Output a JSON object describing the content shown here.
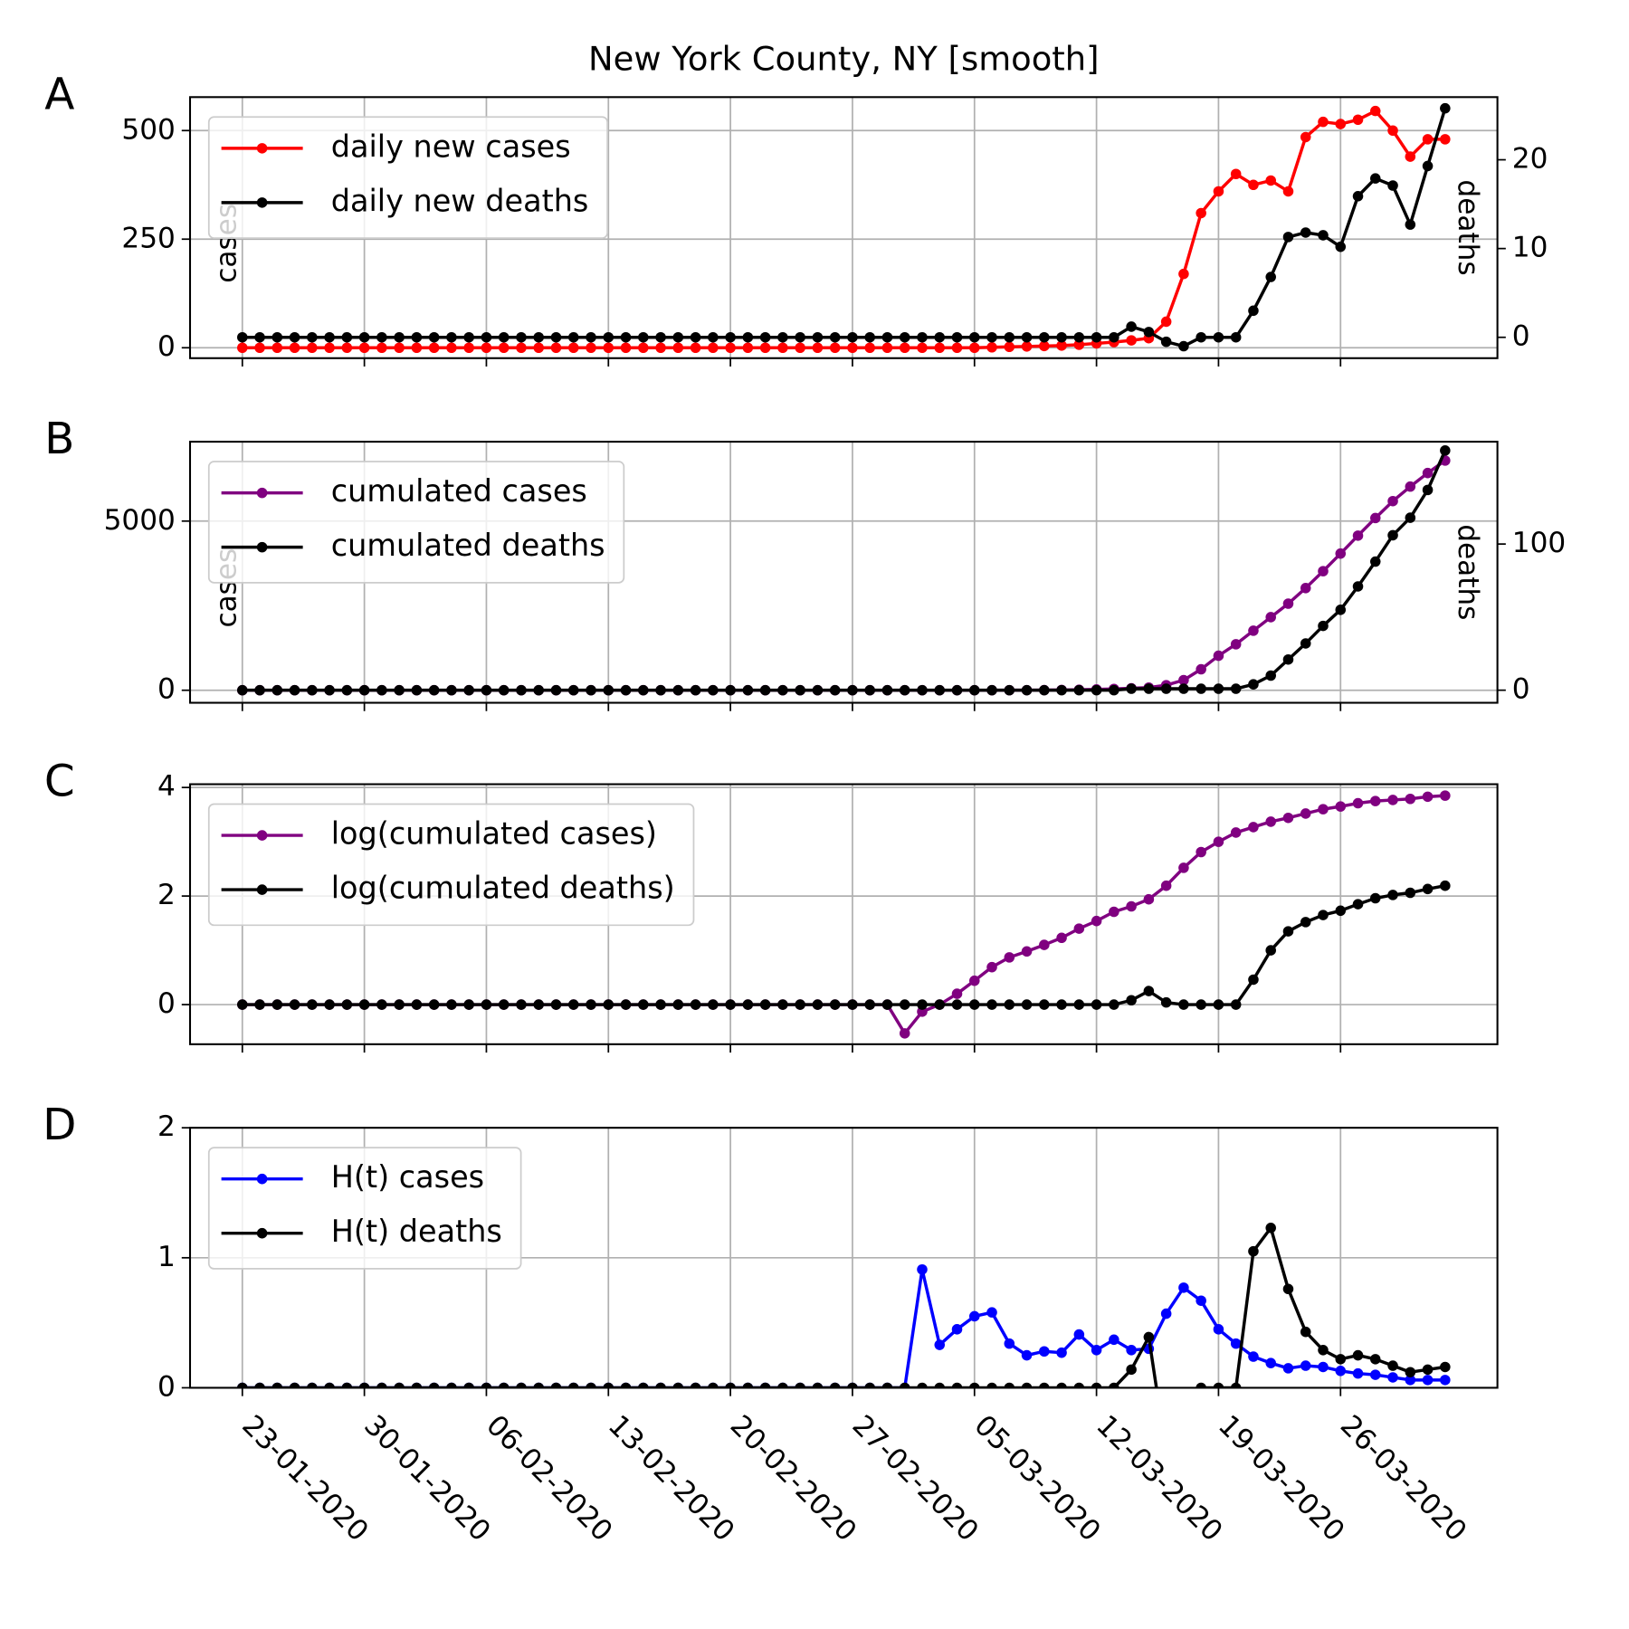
{
  "chart_data": [
    {
      "type": "line",
      "panel_label": "A",
      "title": "New York County, NY [smooth]",
      "ylabel": "cases",
      "y2label": "deaths",
      "grid": true,
      "legend": "upper left",
      "x": [
        "23-01-2020",
        "24-01-2020",
        "25-01-2020",
        "26-01-2020",
        "27-01-2020",
        "28-01-2020",
        "29-01-2020",
        "30-01-2020",
        "31-01-2020",
        "01-02-2020",
        "02-02-2020",
        "03-02-2020",
        "04-02-2020",
        "05-02-2020",
        "06-02-2020",
        "07-02-2020",
        "08-02-2020",
        "09-02-2020",
        "10-02-2020",
        "11-02-2020",
        "12-02-2020",
        "13-02-2020",
        "14-02-2020",
        "15-02-2020",
        "16-02-2020",
        "17-02-2020",
        "18-02-2020",
        "19-02-2020",
        "20-02-2020",
        "21-02-2020",
        "22-02-2020",
        "23-02-2020",
        "24-02-2020",
        "25-02-2020",
        "26-02-2020",
        "27-02-2020",
        "28-02-2020",
        "29-02-2020",
        "01-03-2020",
        "02-03-2020",
        "03-03-2020",
        "04-03-2020",
        "05-03-2020",
        "06-03-2020",
        "07-03-2020",
        "08-03-2020",
        "09-03-2020",
        "10-03-2020",
        "11-03-2020",
        "12-03-2020",
        "13-03-2020",
        "14-03-2020",
        "15-03-2020",
        "16-03-2020",
        "17-03-2020",
        "18-03-2020",
        "19-03-2020",
        "20-03-2020",
        "21-03-2020",
        "22-03-2020",
        "23-03-2020",
        "24-03-2020",
        "25-03-2020",
        "26-03-2020",
        "27-03-2020",
        "28-03-2020",
        "29-03-2020",
        "30-03-2020",
        "31-03-2020",
        "01-04-2020"
      ],
      "xlim": [
        "20-01-2020",
        "04-04-2020"
      ],
      "xticks": [
        "23-01-2020",
        "30-01-2020",
        "06-02-2020",
        "13-02-2020",
        "20-02-2020",
        "27-02-2020",
        "05-03-2020",
        "12-03-2020",
        "19-03-2020",
        "26-03-2020"
      ],
      "ylim": [
        -24,
        577
      ],
      "yticks": [
        0,
        250,
        500
      ],
      "y2lim": [
        -2.35,
        27.06
      ],
      "y2ticks": [
        0,
        10,
        20
      ],
      "series": [
        {
          "name": "daily new cases",
          "color": "#ff0000",
          "values": [
            0,
            0,
            0,
            0,
            0,
            0,
            0,
            0,
            0,
            0,
            0,
            0,
            0,
            0,
            0,
            0,
            0,
            0,
            0,
            0,
            0,
            0,
            0,
            0,
            0,
            0,
            0,
            0,
            0,
            0,
            0,
            0,
            0,
            0,
            0,
            0,
            0,
            0,
            0,
            0,
            0,
            0,
            0,
            1,
            2,
            3,
            4,
            5,
            7,
            10,
            13,
            17,
            22,
            60,
            170,
            310,
            360,
            400,
            375,
            385,
            360,
            485,
            520,
            515,
            525,
            545,
            500,
            440,
            480,
            480
          ]
        },
        {
          "name": "daily new deaths",
          "color": "#000000",
          "axis": "y2",
          "values": [
            0,
            0,
            0,
            0,
            0,
            0,
            0,
            0,
            0,
            0,
            0,
            0,
            0,
            0,
            0,
            0,
            0,
            0,
            0,
            0,
            0,
            0,
            0,
            0,
            0,
            0,
            0,
            0,
            0,
            0,
            0,
            0,
            0,
            0,
            0,
            0,
            0,
            0,
            0,
            0,
            0,
            0,
            0,
            0,
            0,
            0,
            0,
            0,
            0,
            0,
            0,
            1.2,
            0.6,
            -0.5,
            -1,
            0,
            0,
            0,
            3,
            6.8,
            11.3,
            11.8,
            11.5,
            10.2,
            15.9,
            17.9,
            17.1,
            12.7,
            19.3,
            25.8
          ]
        }
      ]
    },
    {
      "type": "line",
      "panel_label": "B",
      "ylabel": "cases",
      "y2label": "deaths",
      "grid": true,
      "legend": "upper left",
      "x": [
        "23-01-2020",
        "24-01-2020",
        "25-01-2020",
        "26-01-2020",
        "27-01-2020",
        "28-01-2020",
        "29-01-2020",
        "30-01-2020",
        "31-01-2020",
        "01-02-2020",
        "02-02-2020",
        "03-02-2020",
        "04-02-2020",
        "05-02-2020",
        "06-02-2020",
        "07-02-2020",
        "08-02-2020",
        "09-02-2020",
        "10-02-2020",
        "11-02-2020",
        "12-02-2020",
        "13-02-2020",
        "14-02-2020",
        "15-02-2020",
        "16-02-2020",
        "17-02-2020",
        "18-02-2020",
        "19-02-2020",
        "20-02-2020",
        "21-02-2020",
        "22-02-2020",
        "23-02-2020",
        "24-02-2020",
        "25-02-2020",
        "26-02-2020",
        "27-02-2020",
        "28-02-2020",
        "29-02-2020",
        "01-03-2020",
        "02-03-2020",
        "03-03-2020",
        "04-03-2020",
        "05-03-2020",
        "06-03-2020",
        "07-03-2020",
        "08-03-2020",
        "09-03-2020",
        "10-03-2020",
        "11-03-2020",
        "12-03-2020",
        "13-03-2020",
        "14-03-2020",
        "15-03-2020",
        "16-03-2020",
        "17-03-2020",
        "18-03-2020",
        "19-03-2020",
        "20-03-2020",
        "21-03-2020",
        "22-03-2020",
        "23-03-2020",
        "24-03-2020",
        "25-03-2020",
        "26-03-2020",
        "27-03-2020",
        "28-03-2020",
        "29-03-2020",
        "30-03-2020",
        "31-03-2020",
        "01-04-2020"
      ],
      "xlim": [
        "20-01-2020",
        "04-04-2020"
      ],
      "xticks": [
        "23-01-2020",
        "30-01-2020",
        "06-02-2020",
        "13-02-2020",
        "20-02-2020",
        "27-02-2020",
        "05-03-2020",
        "12-03-2020",
        "19-03-2020",
        "26-03-2020"
      ],
      "ylim": [
        -370,
        7346
      ],
      "yticks": [
        0,
        5000
      ],
      "y2lim": [
        -8.6,
        170
      ],
      "y2ticks": [
        0,
        100
      ],
      "series": [
        {
          "name": "cumulated cases",
          "color": "#800080",
          "values": [
            0,
            0,
            0,
            0,
            0,
            0,
            0,
            0,
            0,
            0,
            0,
            0,
            0,
            0,
            0,
            0,
            0,
            0,
            0,
            0,
            0,
            0,
            0,
            0,
            0,
            0,
            0,
            0,
            0,
            0,
            0,
            0,
            0,
            0,
            0,
            0,
            0,
            0,
            0,
            0,
            0,
            0,
            0,
            1,
            2,
            3,
            5,
            10,
            15,
            25,
            40,
            60,
            80,
            150,
            300,
            620,
            1020,
            1360,
            1760,
            2160,
            2560,
            3020,
            3520,
            4040,
            4570,
            5090,
            5590,
            6020,
            6420,
            6790
          ]
        },
        {
          "name": "cumulated deaths",
          "color": "#000000",
          "axis": "y2",
          "values": [
            0,
            0,
            0,
            0,
            0,
            0,
            0,
            0,
            0,
            0,
            0,
            0,
            0,
            0,
            0,
            0,
            0,
            0,
            0,
            0,
            0,
            0,
            0,
            0,
            0,
            0,
            0,
            0,
            0,
            0,
            0,
            0,
            0,
            0,
            0,
            0,
            0,
            0,
            0,
            0,
            0,
            0,
            0,
            0,
            0,
            0,
            0,
            0,
            0,
            0,
            0,
            1,
            1,
            1,
            1,
            1,
            1,
            1,
            4,
            10,
            21,
            32,
            44,
            55,
            71,
            88,
            106,
            118,
            137,
            164
          ]
        }
      ]
    },
    {
      "type": "line",
      "panel_label": "C",
      "grid": true,
      "legend": "upper left",
      "x": [
        "23-01-2020",
        "24-01-2020",
        "25-01-2020",
        "26-01-2020",
        "27-01-2020",
        "28-01-2020",
        "29-01-2020",
        "30-01-2020",
        "31-01-2020",
        "01-02-2020",
        "02-02-2020",
        "03-02-2020",
        "04-02-2020",
        "05-02-2020",
        "06-02-2020",
        "07-02-2020",
        "08-02-2020",
        "09-02-2020",
        "10-02-2020",
        "11-02-2020",
        "12-02-2020",
        "13-02-2020",
        "14-02-2020",
        "15-02-2020",
        "16-02-2020",
        "17-02-2020",
        "18-02-2020",
        "19-02-2020",
        "20-02-2020",
        "21-02-2020",
        "22-02-2020",
        "23-02-2020",
        "24-02-2020",
        "25-02-2020",
        "26-02-2020",
        "27-02-2020",
        "28-02-2020",
        "29-02-2020",
        "01-03-2020",
        "02-03-2020",
        "03-03-2020",
        "04-03-2020",
        "05-03-2020",
        "06-03-2020",
        "07-03-2020",
        "08-03-2020",
        "09-03-2020",
        "10-03-2020",
        "11-03-2020",
        "12-03-2020",
        "13-03-2020",
        "14-03-2020",
        "15-03-2020",
        "16-03-2020",
        "17-03-2020",
        "18-03-2020",
        "19-03-2020",
        "20-03-2020",
        "21-03-2020",
        "22-03-2020",
        "23-03-2020",
        "24-03-2020",
        "25-03-2020",
        "26-03-2020",
        "27-03-2020",
        "28-03-2020",
        "29-03-2020",
        "30-03-2020",
        "31-03-2020",
        "01-04-2020"
      ],
      "xlim": [
        "20-01-2020",
        "04-04-2020"
      ],
      "xticks": [
        "23-01-2020",
        "30-01-2020",
        "06-02-2020",
        "13-02-2020",
        "20-02-2020",
        "27-02-2020",
        "05-03-2020",
        "12-03-2020",
        "19-03-2020",
        "26-03-2020"
      ],
      "ylim": [
        -0.73,
        4.06
      ],
      "yticks": [
        0,
        2,
        4
      ],
      "series": [
        {
          "name": "log(cumulated cases)",
          "color": "#800080",
          "values": [
            0,
            0,
            0,
            0,
            0,
            0,
            0,
            0,
            0,
            0,
            0,
            0,
            0,
            0,
            0,
            0,
            0,
            0,
            0,
            0,
            0,
            0,
            0,
            0,
            0,
            0,
            0,
            0,
            0,
            0,
            0,
            0,
            0,
            0,
            0,
            0,
            0,
            0,
            -0.53,
            -0.13,
            0,
            0.2,
            0.44,
            0.69,
            0.87,
            0.98,
            1.1,
            1.23,
            1.4,
            1.54,
            1.71,
            1.81,
            1.94,
            2.19,
            2.52,
            2.81,
            3.0,
            3.17,
            3.27,
            3.37,
            3.44,
            3.52,
            3.6,
            3.65,
            3.71,
            3.75,
            3.77,
            3.79,
            3.83,
            3.85
          ]
        },
        {
          "name": "log(cumulated deaths)",
          "color": "#000000",
          "values": [
            0,
            0,
            0,
            0,
            0,
            0,
            0,
            0,
            0,
            0,
            0,
            0,
            0,
            0,
            0,
            0,
            0,
            0,
            0,
            0,
            0,
            0,
            0,
            0,
            0,
            0,
            0,
            0,
            0,
            0,
            0,
            0,
            0,
            0,
            0,
            0,
            0,
            0,
            0,
            0,
            0,
            0,
            0,
            0,
            0,
            0,
            0,
            0,
            0,
            0,
            0,
            0.08,
            0.25,
            0.04,
            0,
            0,
            0,
            0,
            0.46,
            1.0,
            1.35,
            1.52,
            1.65,
            1.73,
            1.85,
            1.96,
            2.02,
            2.06,
            2.13,
            2.19
          ]
        }
      ]
    },
    {
      "type": "line",
      "panel_label": "D",
      "grid": true,
      "legend": "upper left",
      "x": [
        "23-01-2020",
        "24-01-2020",
        "25-01-2020",
        "26-01-2020",
        "27-01-2020",
        "28-01-2020",
        "29-01-2020",
        "30-01-2020",
        "31-01-2020",
        "01-02-2020",
        "02-02-2020",
        "03-02-2020",
        "04-02-2020",
        "05-02-2020",
        "06-02-2020",
        "07-02-2020",
        "08-02-2020",
        "09-02-2020",
        "10-02-2020",
        "11-02-2020",
        "12-02-2020",
        "13-02-2020",
        "14-02-2020",
        "15-02-2020",
        "16-02-2020",
        "17-02-2020",
        "18-02-2020",
        "19-02-2020",
        "20-02-2020",
        "21-02-2020",
        "22-02-2020",
        "23-02-2020",
        "24-02-2020",
        "25-02-2020",
        "26-02-2020",
        "27-02-2020",
        "28-02-2020",
        "29-02-2020",
        "01-03-2020",
        "02-03-2020",
        "03-03-2020",
        "04-03-2020",
        "05-03-2020",
        "06-03-2020",
        "07-03-2020",
        "08-03-2020",
        "09-03-2020",
        "10-03-2020",
        "11-03-2020",
        "12-03-2020",
        "13-03-2020",
        "14-03-2020",
        "15-03-2020",
        "16-03-2020",
        "17-03-2020",
        "18-03-2020",
        "19-03-2020",
        "20-03-2020",
        "21-03-2020",
        "22-03-2020",
        "23-03-2020",
        "24-03-2020",
        "25-03-2020",
        "26-03-2020",
        "27-03-2020",
        "28-03-2020",
        "29-03-2020",
        "30-03-2020",
        "31-03-2020",
        "01-04-2020"
      ],
      "xlim": [
        "20-01-2020",
        "04-04-2020"
      ],
      "xticks": [
        "23-01-2020",
        "30-01-2020",
        "06-02-2020",
        "13-02-2020",
        "20-02-2020",
        "27-02-2020",
        "05-03-2020",
        "12-03-2020",
        "19-03-2020",
        "26-03-2020"
      ],
      "ylim": [
        0,
        2
      ],
      "yticks": [
        0,
        1,
        2
      ],
      "series": [
        {
          "name": "H(t) cases",
          "color": "#0000ff",
          "values": [
            0,
            0,
            0,
            0,
            0,
            0,
            0,
            0,
            0,
            0,
            0,
            0,
            0,
            0,
            0,
            0,
            0,
            0,
            0,
            0,
            0,
            0,
            0,
            0,
            0,
            0,
            0,
            0,
            0,
            0,
            0,
            0,
            0,
            0,
            0,
            0,
            0,
            0,
            0,
            0.91,
            0.33,
            0.45,
            0.55,
            0.58,
            0.34,
            0.25,
            0.28,
            0.27,
            0.41,
            0.29,
            0.37,
            0.29,
            0.3,
            0.57,
            0.77,
            0.67,
            0.45,
            0.34,
            0.24,
            0.19,
            0.15,
            0.17,
            0.16,
            0.13,
            0.11,
            0.1,
            0.08,
            0.06,
            0.06,
            0.06
          ]
        },
        {
          "name": "H(t) deaths",
          "color": "#000000",
          "values": [
            0,
            0,
            0,
            0,
            0,
            0,
            0,
            0,
            0,
            0,
            0,
            0,
            0,
            0,
            0,
            0,
            0,
            0,
            0,
            0,
            0,
            0,
            0,
            0,
            0,
            0,
            0,
            0,
            0,
            0,
            0,
            0,
            0,
            0,
            0,
            0,
            0,
            0,
            0,
            0,
            0,
            0,
            0,
            0,
            0,
            0,
            0,
            0,
            0,
            0,
            0,
            0.14,
            0.39,
            -0.5,
            null,
            0,
            0,
            0,
            1.05,
            1.23,
            0.76,
            0.43,
            0.29,
            0.22,
            0.25,
            0.22,
            0.17,
            0.12,
            0.14,
            0.16
          ]
        }
      ]
    }
  ]
}
